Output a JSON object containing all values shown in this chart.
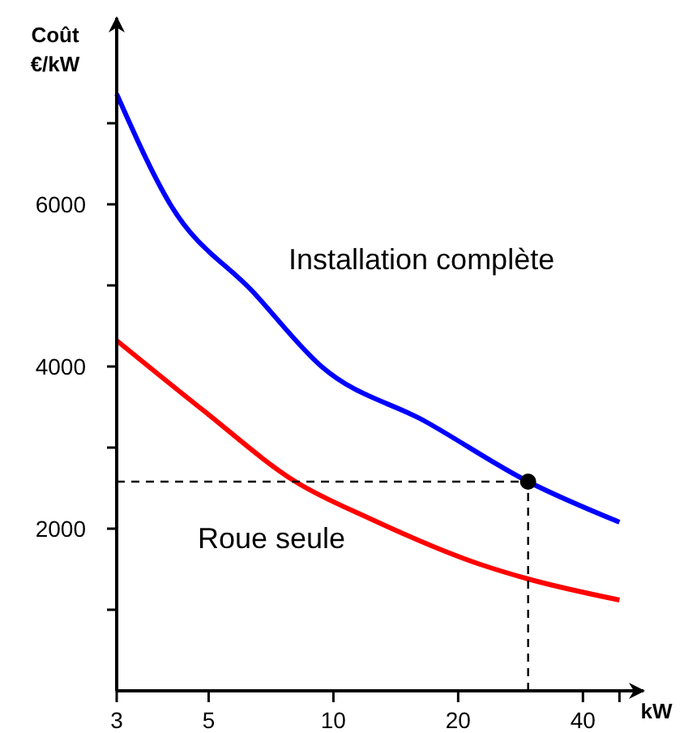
{
  "chart_data": {
    "type": "line",
    "xlabel": "kW",
    "ylabel": "Coût\n€/kW",
    "log": "x",
    "xlim": [
      3,
      56
    ],
    "xticks": [
      3,
      5,
      10,
      20,
      40,
      {
        "value": 49,
        "label": null
      }
    ],
    "ylim": [
      0,
      8300
    ],
    "yticks": [
      {
        "value": 1000,
        "label": null
      },
      2000,
      {
        "value": 3000,
        "label": null
      },
      4000,
      {
        "value": 5000,
        "label": null
      },
      6000,
      {
        "value": 7000,
        "label": null
      }
    ],
    "series": [
      {
        "name": "Installation complète",
        "color": "#0000ff",
        "x": [
          3,
          4.04,
          6.4,
          9.36,
          16.7,
          29.5,
          49
        ],
        "values": [
          7360,
          6000,
          4920,
          4000,
          3320,
          2580,
          2080
        ]
      },
      {
        "name": "Roue seule",
        "color": "#ff0000",
        "x": [
          3,
          4.85,
          8.1,
          12.3,
          22.6,
          29.5,
          49
        ],
        "values": [
          4320,
          3460,
          2580,
          2120,
          1560,
          1380,
          1120
        ]
      },
      {
        "color": "#000000",
        "line_style": "dashed",
        "x": [
          3,
          29.5
        ],
        "values": [
          2580,
          2580
        ]
      },
      {
        "color": "#000000",
        "line_style": "dashed",
        "x": [
          29.5,
          29.5
        ],
        "values": [
          0,
          2580
        ]
      },
      {
        "type": "scatter",
        "marker": "circle",
        "color": "#000000",
        "x": [
          29.5
        ],
        "values": [
          2580
        ]
      }
    ]
  }
}
